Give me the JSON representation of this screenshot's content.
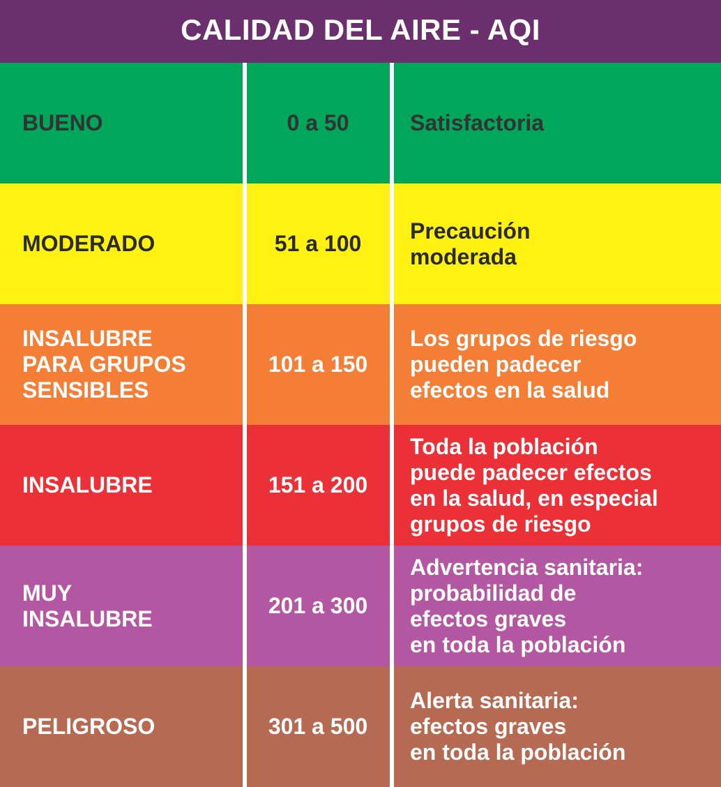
{
  "title": "CALIDAD DEL AIRE - AQI",
  "colors": {
    "header_bg": "#6b2f6d",
    "divider": "#ffffff"
  },
  "rows": [
    {
      "level": "BUENO",
      "range": "0 a 50",
      "description": "Satisfactoria",
      "bg": "#00a65a",
      "text_color": "#333333"
    },
    {
      "level": "MODERADO",
      "range": "51 a 100",
      "description": "Precaución\nmoderada",
      "bg": "#fff213",
      "text_color": "#2b2b2b"
    },
    {
      "level": "INSALUBRE\nPARA GRUPOS\nSENSIBLES",
      "range": "101 a 150",
      "description": "Los grupos de riesgo\npueden padecer\nefectos en la salud",
      "bg": "#f47e35",
      "text_color": "#ffffff"
    },
    {
      "level": "INSALUBRE",
      "range": "151 a 200",
      "description": "Toda la población\npuede padecer efectos\nen la salud, en especial\ngrupos de riesgo",
      "bg": "#ec3038",
      "text_color": "#ffffff"
    },
    {
      "level": "MUY\nINSALUBRE",
      "range": "201 a 300",
      "description": "Advertencia sanitaria:\nprobabilidad de\nefectos graves\nen toda la población",
      "bg": "#b457a3",
      "text_color": "#ffffff"
    },
    {
      "level": "PELIGROSO",
      "range": "301 a 500",
      "description": "Alerta sanitaria:\nefectos graves\nen toda la población",
      "bg": "#b66a52",
      "text_color": "#ffffff"
    }
  ]
}
